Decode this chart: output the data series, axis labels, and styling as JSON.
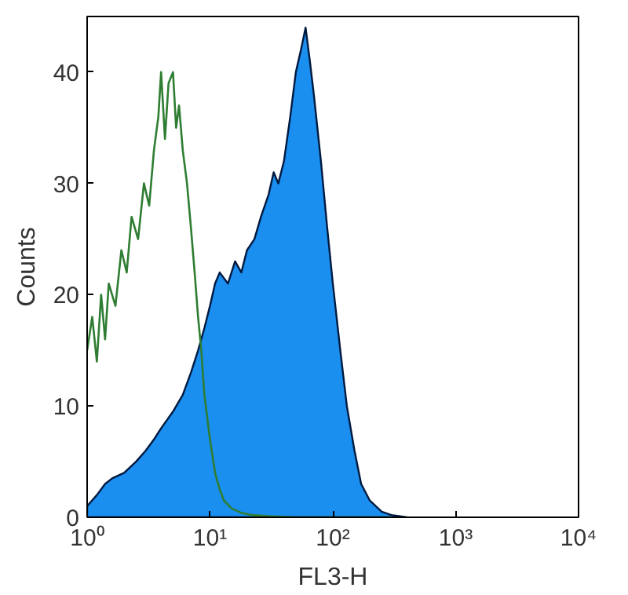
{
  "chart_data": {
    "type": "line",
    "xlabel": "FL3-H",
    "ylabel": "Counts",
    "log": "x",
    "grid": false,
    "xlim": [
      1,
      10000
    ],
    "ylim": [
      0,
      45
    ],
    "xticks": [
      {
        "value": 1,
        "label": "10⁰"
      },
      {
        "value": 10,
        "label": "10¹"
      },
      {
        "value": 100,
        "label": "10²"
      },
      {
        "value": 1000,
        "label": "10³"
      },
      {
        "value": 10000,
        "label": "10⁴"
      }
    ],
    "yticks": [
      0,
      10,
      20,
      30,
      40
    ],
    "series": [
      {
        "type": "area",
        "color": "#1a8ff0",
        "x": [
          1,
          1.2,
          1.4,
          1.6,
          2,
          2.5,
          3,
          3.5,
          4,
          5,
          6,
          7,
          8,
          9,
          10,
          11,
          12,
          14,
          16,
          18,
          20,
          23,
          26,
          30,
          33,
          36,
          40,
          45,
          50,
          55,
          60,
          65,
          70,
          80,
          90,
          100,
          115,
          130,
          150,
          170,
          200,
          250,
          300,
          400
        ],
        "values": [
          1,
          2,
          3,
          3.5,
          4,
          5,
          6,
          7,
          8,
          9.5,
          11,
          13,
          15,
          17,
          19,
          21,
          22,
          21,
          23,
          22,
          24,
          25,
          27,
          29,
          31,
          30,
          32,
          36,
          40,
          42,
          44,
          41,
          38,
          32,
          26,
          21,
          15,
          10,
          6,
          3,
          1.5,
          0.5,
          0.2,
          0
        ]
      },
      {
        "color": "#2e7d32",
        "x": [
          1,
          1.1,
          1.2,
          1.3,
          1.4,
          1.5,
          1.7,
          1.9,
          2.1,
          2.3,
          2.6,
          2.9,
          3.2,
          3.5,
          3.8,
          4,
          4.3,
          4.6,
          5,
          5.3,
          5.6,
          6,
          6.5,
          7,
          7.5,
          8,
          8.5,
          9,
          10,
          11,
          12,
          13,
          15,
          18,
          22,
          30,
          50,
          100,
          300
        ],
        "values": [
          15,
          18,
          14,
          20,
          16,
          21,
          19,
          24,
          22,
          27,
          25,
          30,
          28,
          33,
          36,
          40,
          34,
          39,
          40,
          35,
          37,
          33,
          30,
          26,
          22,
          18,
          15,
          11,
          7,
          4,
          2.5,
          1.5,
          0.8,
          0.4,
          0.2,
          0.1,
          0,
          0,
          0
        ]
      }
    ]
  }
}
